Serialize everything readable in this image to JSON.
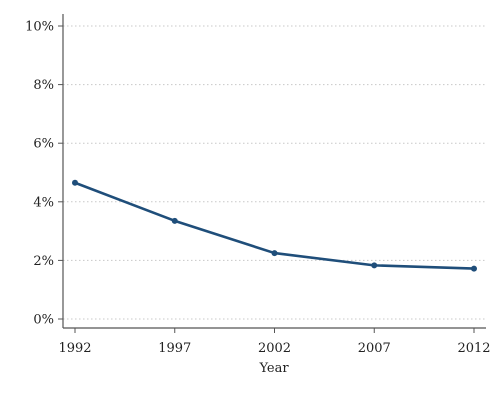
{
  "chart_data": {
    "type": "line",
    "title": "",
    "xlabel": "Year",
    "ylabel": "",
    "x": [
      1992,
      1997,
      2002,
      2007,
      2012
    ],
    "x_ticks": [
      "1992",
      "1997",
      "2002",
      "2007",
      "2012"
    ],
    "y_ticks": [
      "0%",
      "2%",
      "4%",
      "6%",
      "8%",
      "10%"
    ],
    "y_tick_values": [
      0,
      2,
      4,
      6,
      8,
      10
    ],
    "ylim": [
      0,
      10
    ],
    "xlim": [
      1992,
      2012
    ],
    "grid": "horizontal dotted",
    "series": [
      {
        "values": [
          4.65,
          3.35,
          2.25,
          1.83,
          1.72
        ],
        "color": "#1f4e7a"
      }
    ]
  }
}
